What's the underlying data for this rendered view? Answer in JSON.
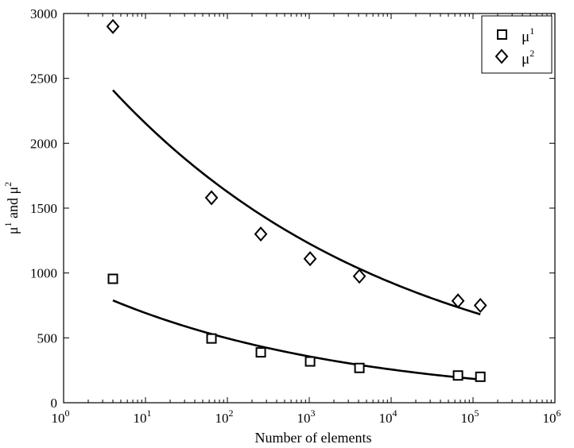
{
  "chart_data": {
    "type": "scatter",
    "title": "",
    "xlabel": "Number of elements",
    "ylabel": {
      "base1": "μ",
      "sup1": "1",
      "connector": " and ",
      "base2": "μ",
      "sup2": "2"
    },
    "xscale": "log",
    "xlim": [
      1,
      1000000
    ],
    "ylim": [
      0,
      3000
    ],
    "grid": false,
    "legend_position": "top-right",
    "x_ticks": [
      {
        "base": "10",
        "exp": "0",
        "value": 1
      },
      {
        "base": "10",
        "exp": "1",
        "value": 10
      },
      {
        "base": "10",
        "exp": "2",
        "value": 100
      },
      {
        "base": "10",
        "exp": "3",
        "value": 1000
      },
      {
        "base": "10",
        "exp": "4",
        "value": 10000
      },
      {
        "base": "10",
        "exp": "5",
        "value": 100000
      },
      {
        "base": "10",
        "exp": "6",
        "value": 1000000
      }
    ],
    "y_ticks": [
      "0",
      "500",
      "1000",
      "1500",
      "2000",
      "2500",
      "3000"
    ],
    "series": [
      {
        "name": "μ1",
        "legend_base": "μ",
        "legend_sup": "1",
        "marker": "square",
        "x": [
          4,
          64,
          256,
          1024,
          4096,
          65536,
          122880
        ],
        "y": [
          955,
          495,
          388,
          318,
          268,
          210,
          200
        ]
      },
      {
        "name": "μ2",
        "legend_base": "μ",
        "legend_sup": "2",
        "marker": "diamond",
        "x": [
          4,
          64,
          256,
          1024,
          4096,
          65536,
          122880
        ],
        "y": [
          2900,
          1580,
          1300,
          1110,
          975,
          785,
          750
        ]
      }
    ],
    "fit_curves": [
      {
        "series": "μ1",
        "x_range": [
          4,
          122880
        ]
      },
      {
        "series": "μ2",
        "x_range": [
          4,
          122880
        ]
      }
    ]
  }
}
